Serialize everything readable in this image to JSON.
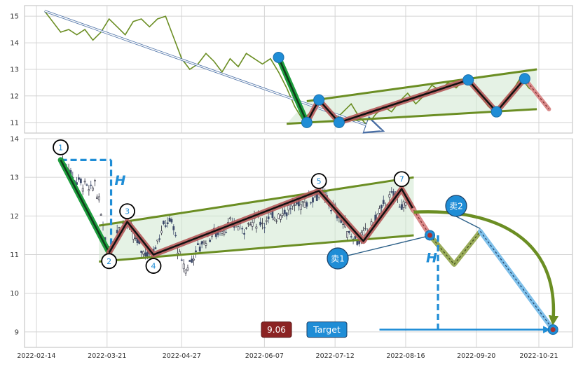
{
  "chart_data": [
    {
      "type": "line",
      "panel": "overview",
      "ylim": [
        10.6,
        15.4
      ],
      "y_ticks": [
        "11",
        "12",
        "13",
        "14",
        "15"
      ],
      "price_line": [
        [
          "2022-02-18",
          15.2
        ],
        [
          "2022-02-22",
          14.8
        ],
        [
          "2022-02-26",
          14.4
        ],
        [
          "2022-03-02",
          14.5
        ],
        [
          "2022-03-06",
          14.3
        ],
        [
          "2022-03-10",
          14.5
        ],
        [
          "2022-03-14",
          14.1
        ],
        [
          "2022-03-18",
          14.4
        ],
        [
          "2022-03-22",
          14.9
        ],
        [
          "2022-03-26",
          14.6
        ],
        [
          "2022-03-30",
          14.3
        ],
        [
          "2022-04-03",
          14.8
        ],
        [
          "2022-04-07",
          14.9
        ],
        [
          "2022-04-11",
          14.6
        ],
        [
          "2022-04-15",
          14.9
        ],
        [
          "2022-04-19",
          15.0
        ],
        [
          "2022-04-23",
          14.2
        ],
        [
          "2022-04-27",
          13.4
        ],
        [
          "2022-05-01",
          13.0
        ],
        [
          "2022-05-05",
          13.2
        ],
        [
          "2022-05-09",
          13.6
        ],
        [
          "2022-05-13",
          13.3
        ],
        [
          "2022-05-17",
          12.9
        ],
        [
          "2022-05-21",
          13.4
        ],
        [
          "2022-05-25",
          13.1
        ],
        [
          "2022-05-29",
          13.6
        ],
        [
          "2022-06-02",
          13.4
        ],
        [
          "2022-06-06",
          13.2
        ],
        [
          "2022-06-10",
          13.4
        ],
        [
          "2022-06-14",
          12.9
        ],
        [
          "2022-06-18",
          12.3
        ],
        [
          "2022-06-22",
          11.6
        ],
        [
          "2022-06-26",
          11.1
        ],
        [
          "2022-06-30",
          11.4
        ],
        [
          "2022-07-04",
          11.8
        ],
        [
          "2022-07-08",
          11.5
        ],
        [
          "2022-07-12",
          11.1
        ],
        [
          "2022-07-16",
          11.4
        ],
        [
          "2022-07-20",
          11.7
        ],
        [
          "2022-07-24",
          11.2
        ],
        [
          "2022-07-28",
          10.9
        ],
        [
          "2022-08-01",
          11.3
        ],
        [
          "2022-08-05",
          11.6
        ],
        [
          "2022-08-09",
          11.4
        ],
        [
          "2022-08-13",
          11.8
        ],
        [
          "2022-08-17",
          12.1
        ],
        [
          "2022-08-21",
          11.7
        ],
        [
          "2022-08-25",
          12.0
        ],
        [
          "2022-08-29",
          12.4
        ],
        [
          "2022-09-02",
          12.2
        ],
        [
          "2022-09-06",
          12.5
        ],
        [
          "2022-09-10",
          12.3
        ],
        [
          "2022-09-14",
          12.6
        ],
        [
          "2022-09-18",
          12.4
        ],
        [
          "2022-09-22",
          12.0
        ],
        [
          "2022-09-26",
          11.6
        ],
        [
          "2022-09-30",
          11.4
        ],
        [
          "2022-10-04",
          11.8
        ],
        [
          "2022-10-08",
          12.2
        ],
        [
          "2022-10-12",
          12.7
        ],
        [
          "2022-10-16",
          12.3
        ],
        [
          "2022-10-20",
          12.1
        ]
      ],
      "down_arrow": [
        [
          "2022-02-18",
          15.2
        ],
        [
          "2022-08-04",
          10.7
        ]
      ],
      "channel_upper": [
        [
          "2022-06-28",
          11.8
        ],
        [
          "2022-10-20",
          13.0
        ]
      ],
      "channel_lower": [
        [
          "2022-06-18",
          10.95
        ],
        [
          "2022-10-20",
          11.5
        ]
      ],
      "drop_leg": [
        [
          "2022-06-14",
          13.45
        ],
        [
          "2022-06-28",
          11.0
        ]
      ],
      "zigzag": [
        [
          "2022-06-28",
          11.0
        ],
        [
          "2022-07-04",
          11.85
        ],
        [
          "2022-07-14",
          11.0
        ],
        [
          "2022-09-16",
          12.6
        ],
        [
          "2022-09-30",
          11.4
        ],
        [
          "2022-10-14",
          12.65
        ]
      ],
      "forecast": [
        [
          "2022-10-14",
          12.65
        ],
        [
          "2022-10-26",
          11.5
        ]
      ],
      "pivots": [
        [
          "2022-06-14",
          13.45
        ],
        [
          "2022-06-28",
          11.0
        ],
        [
          "2022-07-04",
          11.85
        ],
        [
          "2022-07-14",
          11.0
        ],
        [
          "2022-09-16",
          12.6
        ],
        [
          "2022-09-30",
          11.4
        ],
        [
          "2022-10-14",
          12.65
        ]
      ]
    },
    {
      "type": "candlestick",
      "panel": "detail",
      "ylim": [
        8.6,
        14.0
      ],
      "y_ticks": [
        "9",
        "10",
        "11",
        "12",
        "13",
        "14"
      ],
      "x_ticks": [
        "2022-02-14",
        "2022-03-21",
        "2022-04-27",
        "2022-06-07",
        "2022-07-12",
        "2022-08-16",
        "2022-09-20",
        "2022-10-21"
      ],
      "close_path": [
        [
          "2022-02-26",
          13.45
        ],
        [
          "2022-03-01",
          13.3
        ],
        [
          "2022-03-04",
          13.0
        ],
        [
          "2022-03-07",
          12.9
        ],
        [
          "2022-03-10",
          12.8
        ],
        [
          "2022-03-13",
          12.6
        ],
        [
          "2022-03-15",
          12.9
        ],
        [
          "2022-03-17",
          12.3
        ],
        [
          "2022-03-19",
          11.8
        ],
        [
          "2022-03-21",
          11.1
        ],
        [
          "2022-03-24",
          11.4
        ],
        [
          "2022-03-27",
          11.7
        ],
        [
          "2022-03-30",
          11.85
        ],
        [
          "2022-04-02",
          11.6
        ],
        [
          "2022-04-05",
          11.3
        ],
        [
          "2022-04-08",
          11.1
        ],
        [
          "2022-04-11",
          11.0
        ],
        [
          "2022-04-14",
          11.3
        ],
        [
          "2022-04-17",
          11.6
        ],
        [
          "2022-04-20",
          11.9
        ],
        [
          "2022-04-23",
          11.7
        ],
        [
          "2022-04-26",
          10.9
        ],
        [
          "2022-04-29",
          10.6
        ],
        [
          "2022-05-03",
          11.0
        ],
        [
          "2022-05-07",
          11.3
        ],
        [
          "2022-05-11",
          11.5
        ],
        [
          "2022-05-15",
          11.6
        ],
        [
          "2022-05-19",
          11.7
        ],
        [
          "2022-05-23",
          11.8
        ],
        [
          "2022-05-27",
          11.7
        ],
        [
          "2022-05-31",
          11.8
        ],
        [
          "2022-06-04",
          11.9
        ],
        [
          "2022-06-08",
          11.85
        ],
        [
          "2022-06-12",
          12.0
        ],
        [
          "2022-06-16",
          12.1
        ],
        [
          "2022-06-20",
          12.2
        ],
        [
          "2022-06-24",
          12.3
        ],
        [
          "2022-06-28",
          12.4
        ],
        [
          "2022-07-02",
          12.55
        ],
        [
          "2022-07-05",
          12.6
        ],
        [
          "2022-07-08",
          12.4
        ],
        [
          "2022-07-11",
          12.2
        ],
        [
          "2022-07-14",
          12.0
        ],
        [
          "2022-07-17",
          11.7
        ],
        [
          "2022-07-20",
          11.5
        ],
        [
          "2022-07-24",
          11.35
        ],
        [
          "2022-07-28",
          11.6
        ],
        [
          "2022-08-01",
          11.9
        ],
        [
          "2022-08-04",
          12.2
        ],
        [
          "2022-08-08",
          12.4
        ],
        [
          "2022-08-11",
          12.6
        ],
        [
          "2022-08-14",
          12.3
        ],
        [
          "2022-08-17",
          12.1
        ]
      ],
      "channel_upper": [
        [
          "2022-03-17",
          11.75
        ],
        [
          "2022-08-20",
          13.0
        ]
      ],
      "channel_lower": [
        [
          "2022-03-17",
          10.82
        ],
        [
          "2022-08-20",
          11.5
        ]
      ],
      "zigzag_down": [
        [
          "2022-02-26",
          13.45
        ],
        [
          "2022-03-22",
          11.05
        ]
      ],
      "zigzag": [
        [
          "2022-03-22",
          11.05
        ],
        [
          "2022-03-31",
          11.85
        ],
        [
          "2022-04-13",
          11.0
        ],
        [
          "2022-07-04",
          12.65
        ],
        [
          "2022-07-26",
          11.35
        ],
        [
          "2022-08-14",
          12.7
        ],
        [
          "2022-08-20",
          12.15
        ]
      ],
      "forecast_leg": [
        [
          "2022-08-20",
          12.15
        ],
        [
          "2022-08-28",
          11.5
        ]
      ],
      "retest": [
        [
          "2022-08-28",
          11.5
        ],
        [
          "2022-09-09",
          10.75
        ],
        [
          "2022-09-22",
          11.6
        ]
      ],
      "target_leg": [
        [
          "2022-09-22",
          11.6
        ],
        [
          "2022-10-28",
          9.06
        ]
      ],
      "curve_arrow": [
        [
          "2022-08-20",
          12.1
        ],
        [
          "2022-10-28",
          9.06
        ]
      ],
      "h_lines": {
        "top": [
          [
            "2022-02-26",
            13.45
          ],
          [
            "2022-03-23",
            13.45
          ]
        ],
        "vertical": [
          [
            "2022-03-23",
            13.45
          ],
          [
            "2022-03-23",
            11.05
          ]
        ],
        "forecast_vertical": [
          [
            "2022-09-01",
            11.5
          ],
          [
            "2022-09-01",
            9.06
          ]
        ]
      },
      "target_line": [
        [
          "2022-08-03",
          9.06
        ],
        [
          "2022-10-26",
          9.06
        ]
      ],
      "target_point": [
        "2022-10-28",
        9.06
      ],
      "pivot_labels": [
        {
          "label": "1",
          "x": "2022-02-26",
          "y": 13.45
        },
        {
          "label": "2",
          "x": "2022-03-22",
          "y": 11.05
        },
        {
          "label": "3",
          "x": "2022-03-31",
          "y": 11.85
        },
        {
          "label": "4",
          "x": "2022-04-13",
          "y": 11.0
        },
        {
          "label": "5",
          "x": "2022-07-04",
          "y": 12.65
        },
        {
          "label": "7",
          "x": "2022-08-14",
          "y": 12.7
        }
      ],
      "annotations": {
        "h_left": "H",
        "h_right": "H",
        "sell1": "卖1",
        "sell2": "卖2",
        "target_value": "9.06",
        "target_label": "Target"
      }
    }
  ],
  "colors": {
    "price": "#6b8e23",
    "channel": "#6b8e23",
    "channel_fill": "#cfe8cf",
    "zigzag_outer": "#b55a5a",
    "zigzag_inner": "#111111",
    "down_outer": "#1e9e3e",
    "down_inner": "#0d3d1a",
    "pivot": "#1f8dd6",
    "target_line": "#1f8dd6",
    "target_badge": "#1f8dd6",
    "value_badge": "#8b2323",
    "grid": "#d4d4d4"
  }
}
